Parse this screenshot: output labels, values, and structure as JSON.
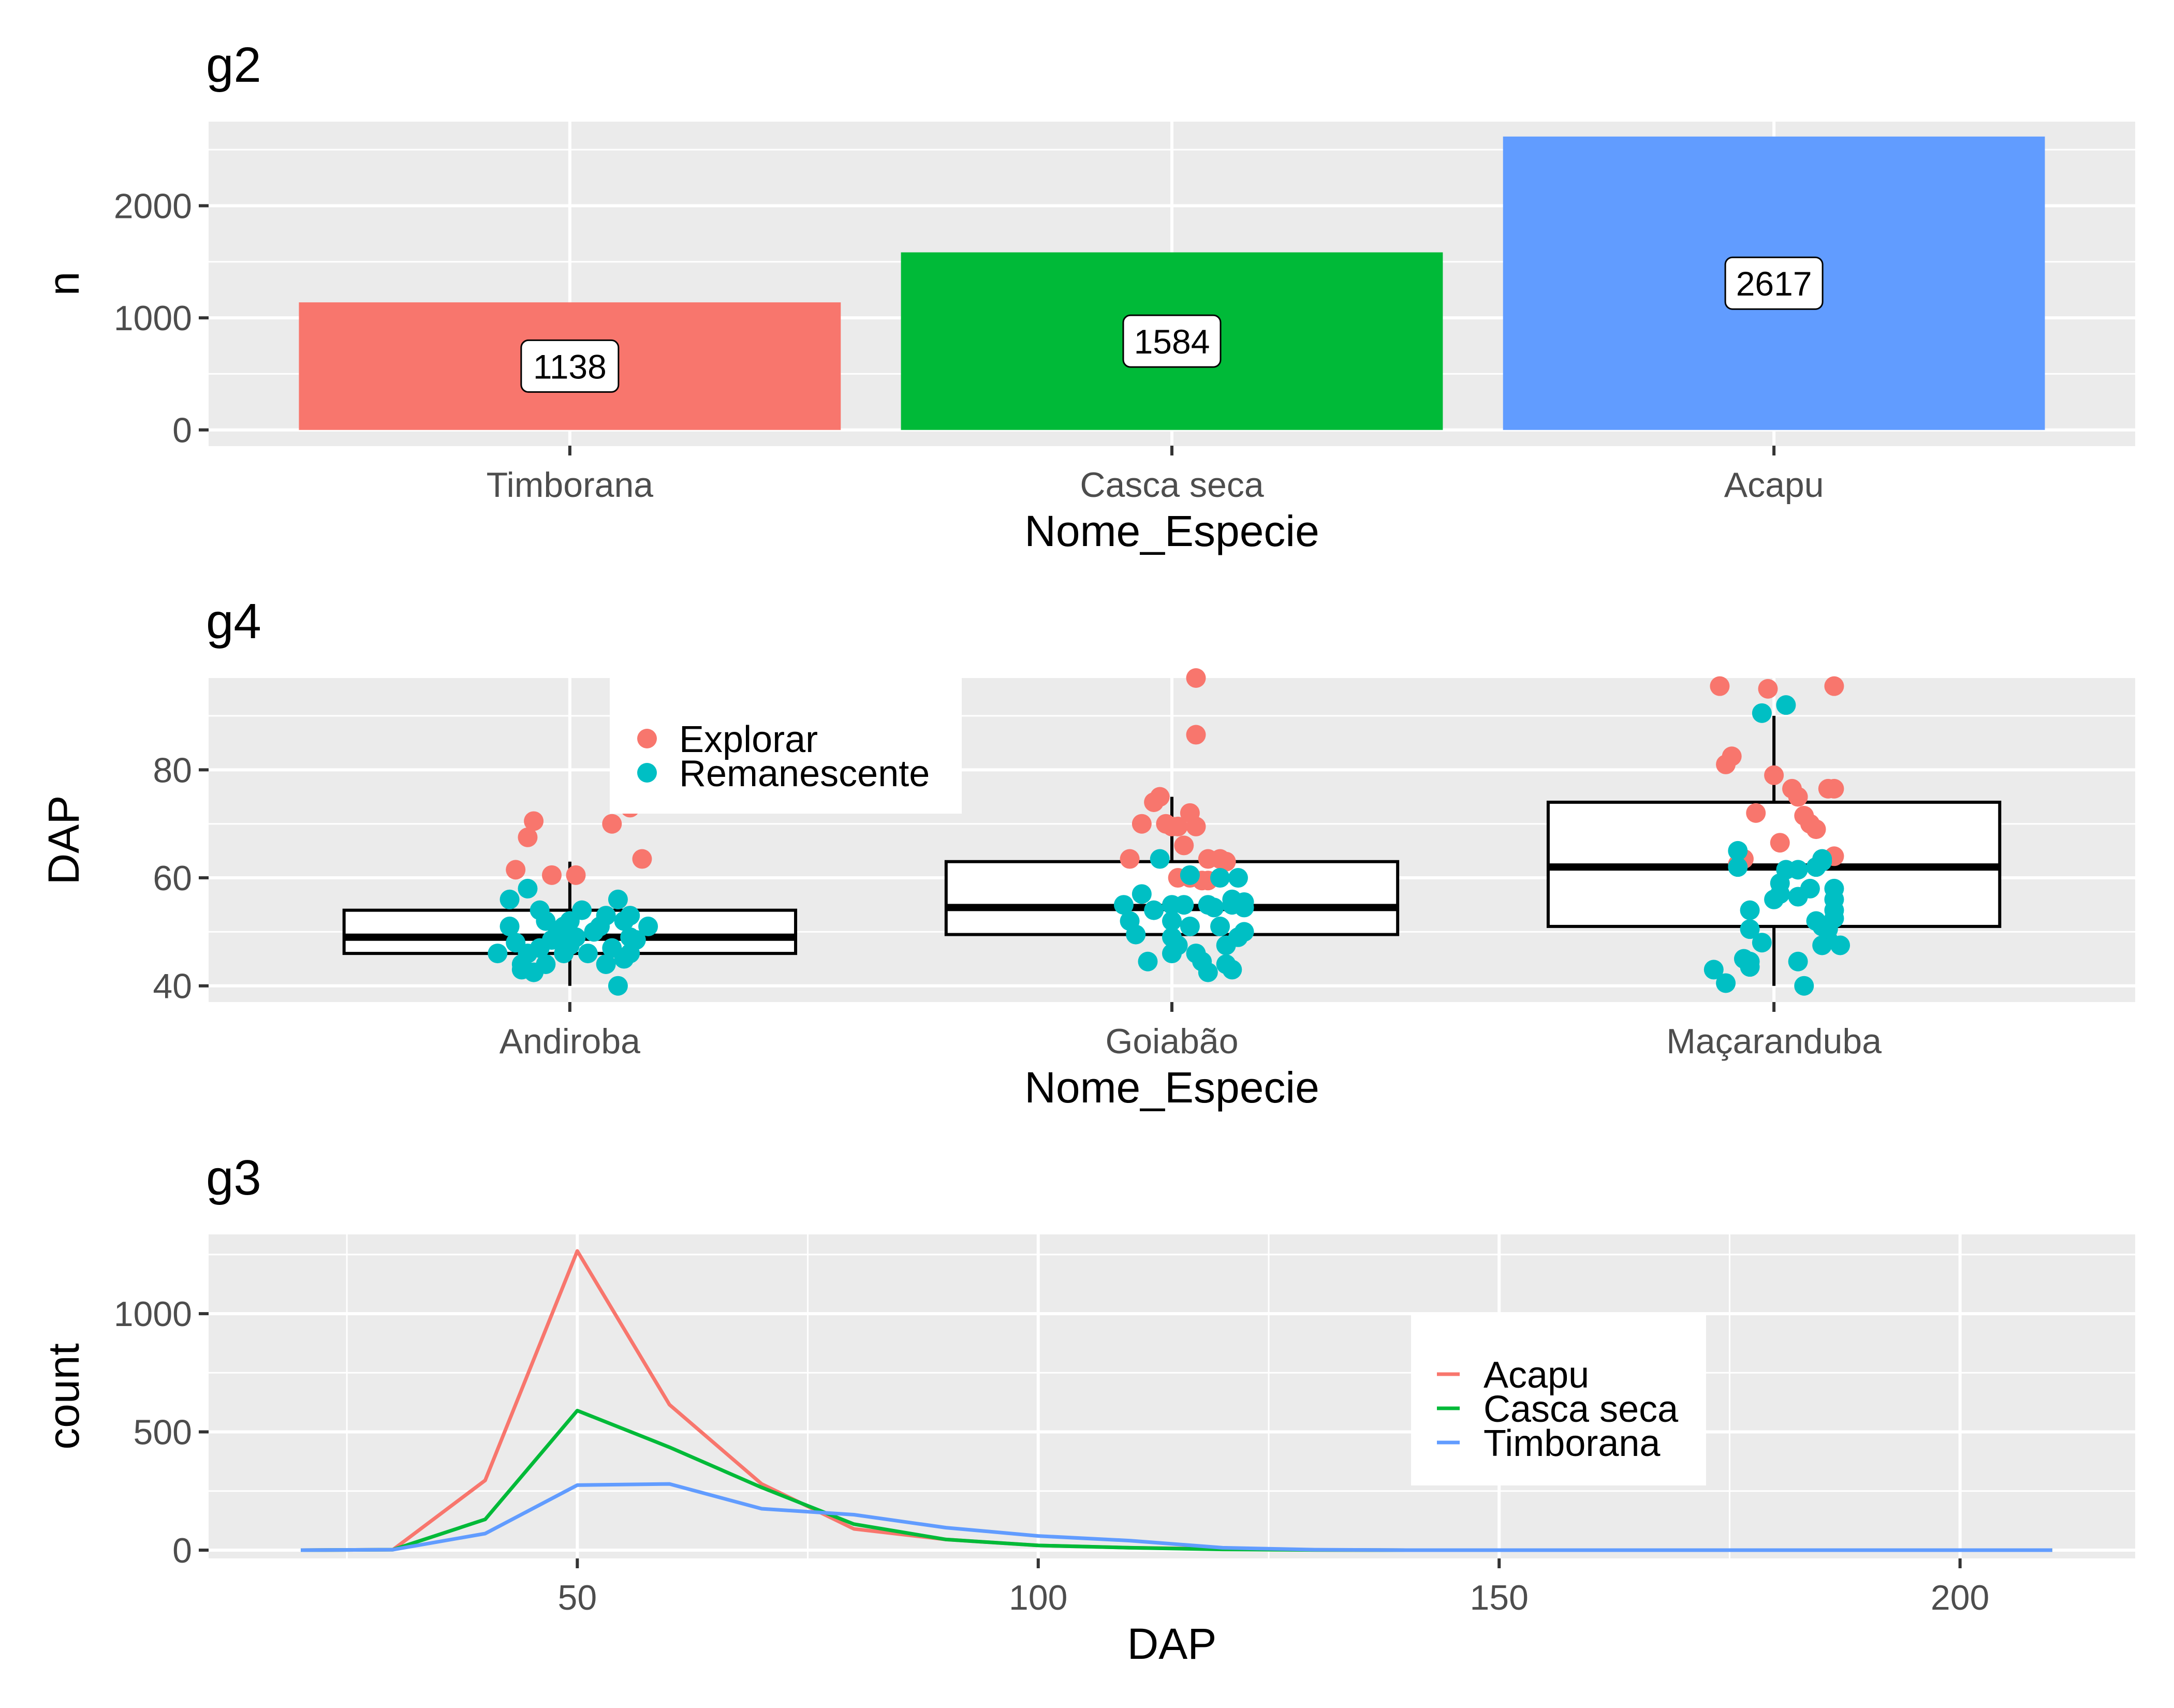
{
  "chart_data": [
    {
      "panel": "g2",
      "type": "bar",
      "title": "g2",
      "xlabel": "Nome_Especie",
      "ylabel": "n",
      "categories": [
        "Timborana",
        "Casca seca",
        "Acapu"
      ],
      "values": [
        1138,
        1584,
        2617
      ],
      "data_labels": [
        "1138",
        "1584",
        "2617"
      ],
      "colors": [
        "#F8766D",
        "#00BA38",
        "#619CFF"
      ],
      "ylim": [
        -140,
        2750
      ],
      "yticks": [
        0,
        1000,
        2000
      ],
      "ytick_labels": [
        "0",
        "1000",
        "2000"
      ],
      "grid": true,
      "legend": "none"
    },
    {
      "panel": "g4",
      "type": "box+scatter",
      "title": "g4",
      "xlabel": "Nome_Especie",
      "ylabel": "DAP",
      "categories": [
        "Andiroba",
        "Goiabão",
        "Maçaranduba"
      ],
      "boxes": [
        {
          "category": "Andiroba",
          "q1": 46,
          "median": 49,
          "q3": 54,
          "whisker_low": 40,
          "whisker_high": 63
        },
        {
          "category": "Goiabão",
          "q1": 49.5,
          "median": 54.5,
          "q3": 63,
          "whisker_low": 45,
          "whisker_high": 75
        },
        {
          "category": "Maçaranduba",
          "q1": 51,
          "median": 62,
          "q3": 74,
          "whisker_low": 40,
          "whisker_high": 90
        }
      ],
      "ylim": [
        37,
        97
      ],
      "yticks": [
        40,
        60,
        80
      ],
      "ytick_labels": [
        "40",
        "60",
        "80"
      ],
      "grid": true,
      "legend_position": "top-left",
      "series": [
        {
          "name": "Explorar",
          "color": "#F8766D",
          "points": [
            [
              0.91,
              61.5
            ],
            [
              0.93,
              67.5
            ],
            [
              0.94,
              70.5
            ],
            [
              0.97,
              60.5
            ],
            [
              1.01,
              60.5
            ],
            [
              1.07,
              70
            ],
            [
              1.1,
              73
            ],
            [
              1.12,
              63.5
            ],
            [
              1.93,
              63.5
            ],
            [
              1.95,
              70
            ],
            [
              1.97,
              74
            ],
            [
              1.98,
              75
            ],
            [
              1.99,
              70
            ],
            [
              2.0,
              69.5
            ],
            [
              2.01,
              69.5
            ],
            [
              2.02,
              66
            ],
            [
              2.03,
              60
            ],
            [
              2.05,
              59.5
            ],
            [
              2.01,
              60
            ],
            [
              2.04,
              86.5
            ],
            [
              2.03,
              72
            ],
            [
              2.04,
              69.5
            ],
            [
              2.06,
              63.5
            ],
            [
              2.06,
              59.5
            ],
            [
              2.04,
              97
            ],
            [
              2.08,
              63.5
            ],
            [
              2.09,
              63
            ],
            [
              2.91,
              95.5
            ],
            [
              2.92,
              81
            ],
            [
              2.93,
              82.5
            ],
            [
              2.94,
              62.5
            ],
            [
              2.95,
              63.5
            ],
            [
              2.97,
              72
            ],
            [
              2.99,
              95
            ],
            [
              3.0,
              79
            ],
            [
              3.01,
              66.5
            ],
            [
              3.03,
              76.5
            ],
            [
              3.04,
              75
            ],
            [
              3.05,
              71.5
            ],
            [
              3.06,
              70
            ],
            [
              3.07,
              69
            ],
            [
              3.09,
              76.5
            ],
            [
              3.1,
              76.5
            ],
            [
              3.1,
              95.5
            ],
            [
              3.1,
              64
            ]
          ]
        },
        {
          "name": "Remanescente",
          "color": "#00BFC4",
          "points": [
            [
              0.88,
              46
            ],
            [
              0.9,
              51
            ],
            [
              0.9,
              56
            ],
            [
              0.91,
              48
            ],
            [
              0.92,
              44
            ],
            [
              0.92,
              43
            ],
            [
              0.93,
              46
            ],
            [
              0.93,
              58
            ],
            [
              0.94,
              42.5
            ],
            [
              0.95,
              54
            ],
            [
              0.95,
              47
            ],
            [
              0.96,
              52
            ],
            [
              0.96,
              44
            ],
            [
              0.97,
              48.5
            ],
            [
              0.98,
              50
            ],
            [
              0.99,
              46
            ],
            [
              0.99,
              51
            ],
            [
              1.0,
              47.5
            ],
            [
              1.0,
              52
            ],
            [
              1.01,
              49
            ],
            [
              1.02,
              54
            ],
            [
              1.03,
              46
            ],
            [
              1.04,
              50
            ],
            [
              1.05,
              51
            ],
            [
              1.06,
              53
            ],
            [
              1.06,
              44
            ],
            [
              1.07,
              47
            ],
            [
              1.08,
              56
            ],
            [
              1.08,
              40
            ],
            [
              1.09,
              45
            ],
            [
              1.09,
              52
            ],
            [
              1.1,
              49
            ],
            [
              1.1,
              53
            ],
            [
              1.1,
              46
            ],
            [
              1.11,
              48.5
            ],
            [
              1.13,
              51
            ],
            [
              1.92,
              55
            ],
            [
              1.93,
              52
            ],
            [
              1.94,
              49.5
            ],
            [
              1.95,
              57
            ],
            [
              1.96,
              44.5
            ],
            [
              1.97,
              54
            ],
            [
              1.98,
              63.5
            ],
            [
              2.0,
              55
            ],
            [
              2.0,
              49
            ],
            [
              2.0,
              52
            ],
            [
              2.0,
              46
            ],
            [
              2.01,
              47.5
            ],
            [
              2.02,
              55
            ],
            [
              2.03,
              51
            ],
            [
              2.03,
              60.5
            ],
            [
              2.04,
              46
            ],
            [
              2.05,
              44.5
            ],
            [
              2.06,
              55
            ],
            [
              2.06,
              42.5
            ],
            [
              2.07,
              54.5
            ],
            [
              2.08,
              60
            ],
            [
              2.08,
              51
            ],
            [
              2.09,
              47.5
            ],
            [
              2.09,
              44
            ],
            [
              2.1,
              56
            ],
            [
              2.1,
              55
            ],
            [
              2.1,
              43
            ],
            [
              2.11,
              49
            ],
            [
              2.11,
              60
            ],
            [
              2.12,
              55.5
            ],
            [
              2.12,
              54.5
            ],
            [
              2.12,
              50
            ],
            [
              2.9,
              43
            ],
            [
              2.92,
              40.5
            ],
            [
              2.94,
              65
            ],
            [
              2.94,
              62
            ],
            [
              2.95,
              45
            ],
            [
              2.96,
              44.5
            ],
            [
              2.96,
              54
            ],
            [
              2.96,
              43.5
            ],
            [
              2.96,
              50.5
            ],
            [
              2.98,
              90.5
            ],
            [
              2.98,
              48
            ],
            [
              3.0,
              56
            ],
            [
              3.01,
              59
            ],
            [
              3.01,
              57
            ],
            [
              3.02,
              61.5
            ],
            [
              3.02,
              92
            ],
            [
              3.04,
              44.5
            ],
            [
              3.04,
              56.5
            ],
            [
              3.04,
              61.5
            ],
            [
              3.05,
              40
            ],
            [
              3.06,
              58
            ],
            [
              3.07,
              52
            ],
            [
              3.07,
              62
            ],
            [
              3.08,
              47.5
            ],
            [
              3.08,
              51
            ],
            [
              3.08,
              63
            ],
            [
              3.08,
              63.5
            ],
            [
              3.09,
              48.5
            ],
            [
              3.09,
              50.5
            ],
            [
              3.1,
              54
            ],
            [
              3.1,
              52.5
            ],
            [
              3.1,
              56
            ],
            [
              3.1,
              58
            ],
            [
              3.11,
              47.5
            ]
          ]
        }
      ]
    },
    {
      "panel": "g3",
      "type": "line",
      "title": "g3",
      "xlabel": "DAP",
      "ylabel": "count",
      "xlim": [
        10,
        219
      ],
      "ylim": [
        -35,
        1335
      ],
      "xticks": [
        50,
        100,
        150,
        200
      ],
      "xtick_labels": [
        "50",
        "100",
        "150",
        "200"
      ],
      "yticks": [
        0,
        500,
        1000
      ],
      "ytick_labels": [
        "0",
        "500",
        "1000"
      ],
      "x": [
        20,
        30,
        40,
        50,
        60,
        70,
        80,
        90,
        100,
        110,
        120,
        130,
        140,
        150,
        160,
        170,
        180,
        190,
        200,
        210
      ],
      "grid": true,
      "legend_position": "right",
      "series": [
        {
          "name": "Acapu",
          "color": "#F8766D",
          "values": [
            0,
            2,
            295,
            1265,
            615,
            280,
            90,
            45,
            20,
            10,
            5,
            1,
            0,
            0,
            0,
            0,
            0,
            0,
            0,
            0
          ]
        },
        {
          "name": "Casca seca",
          "color": "#00BA38",
          "values": [
            0,
            2,
            130,
            590,
            435,
            265,
            110,
            45,
            20,
            10,
            3,
            1,
            0,
            0,
            0,
            0,
            0,
            0,
            0,
            0
          ]
        },
        {
          "name": "Timborana",
          "color": "#619CFF",
          "values": [
            0,
            2,
            70,
            275,
            280,
            175,
            150,
            95,
            60,
            40,
            10,
            2,
            0,
            0,
            0,
            0,
            0,
            0,
            0,
            0
          ]
        }
      ]
    }
  ]
}
